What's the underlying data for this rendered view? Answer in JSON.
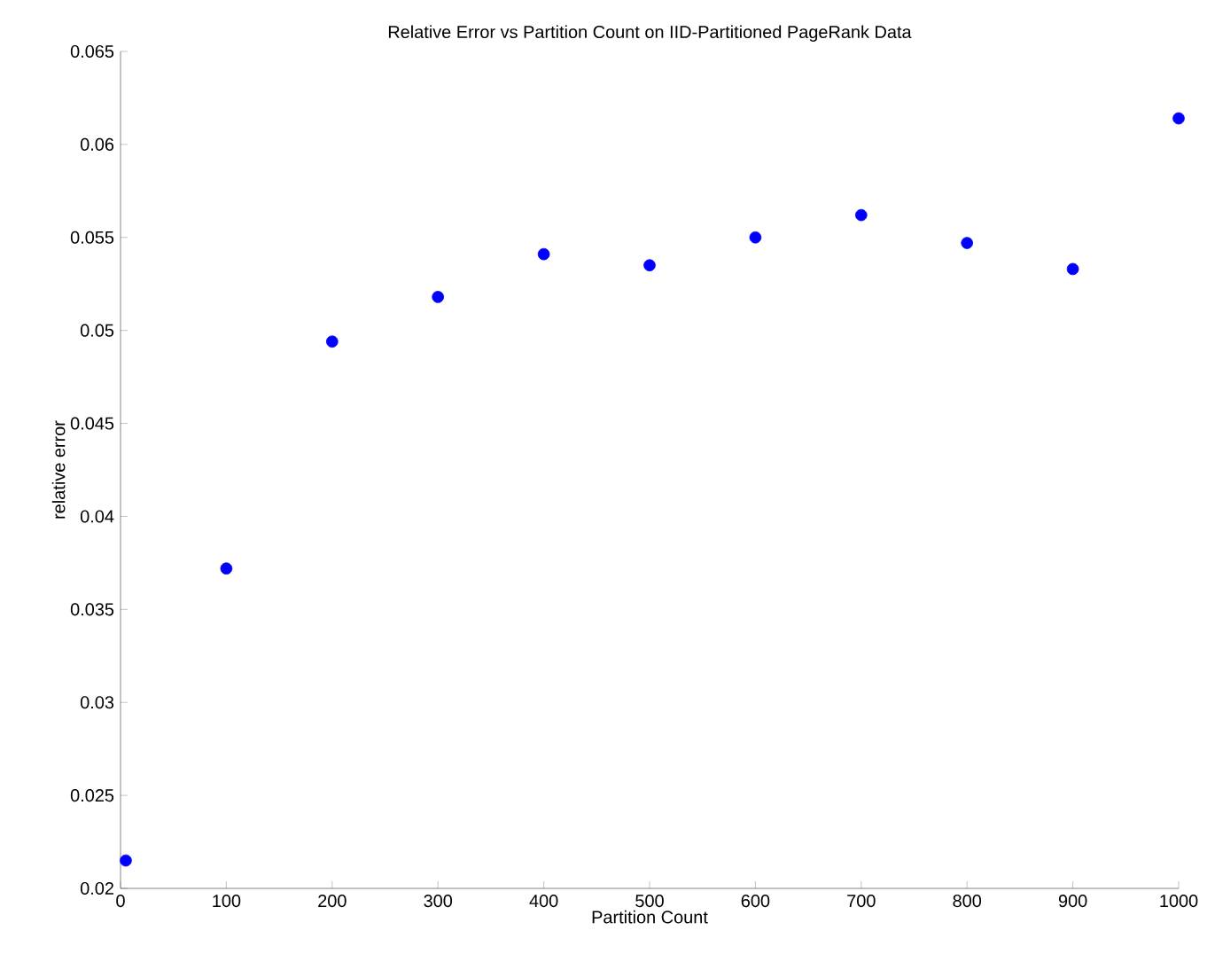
{
  "chart_data": {
    "type": "scatter",
    "title": "Relative Error vs Partition Count on IID-Partitioned PageRank Data",
    "xlabel": "Partition Count",
    "ylabel": "relative error",
    "x": [
      5,
      100,
      200,
      300,
      400,
      500,
      600,
      700,
      800,
      900,
      1000
    ],
    "series": [
      {
        "color": "#0000ff",
        "values": [
          0.0215,
          0.0372,
          0.0494,
          0.0518,
          0.0541,
          0.0535,
          0.055,
          0.0562,
          0.0547,
          0.0533,
          0.0614
        ]
      }
    ],
    "marker": "circle",
    "grid": false,
    "xlim": [
      0,
      1000
    ],
    "ylim": [
      0.02,
      0.065
    ],
    "xticks": [
      0,
      100,
      200,
      300,
      400,
      500,
      600,
      700,
      800,
      900,
      1000
    ],
    "yticks": [
      0.02,
      0.025,
      0.03,
      0.035,
      0.04,
      0.045,
      0.05,
      0.055,
      0.06,
      0.065
    ]
  }
}
